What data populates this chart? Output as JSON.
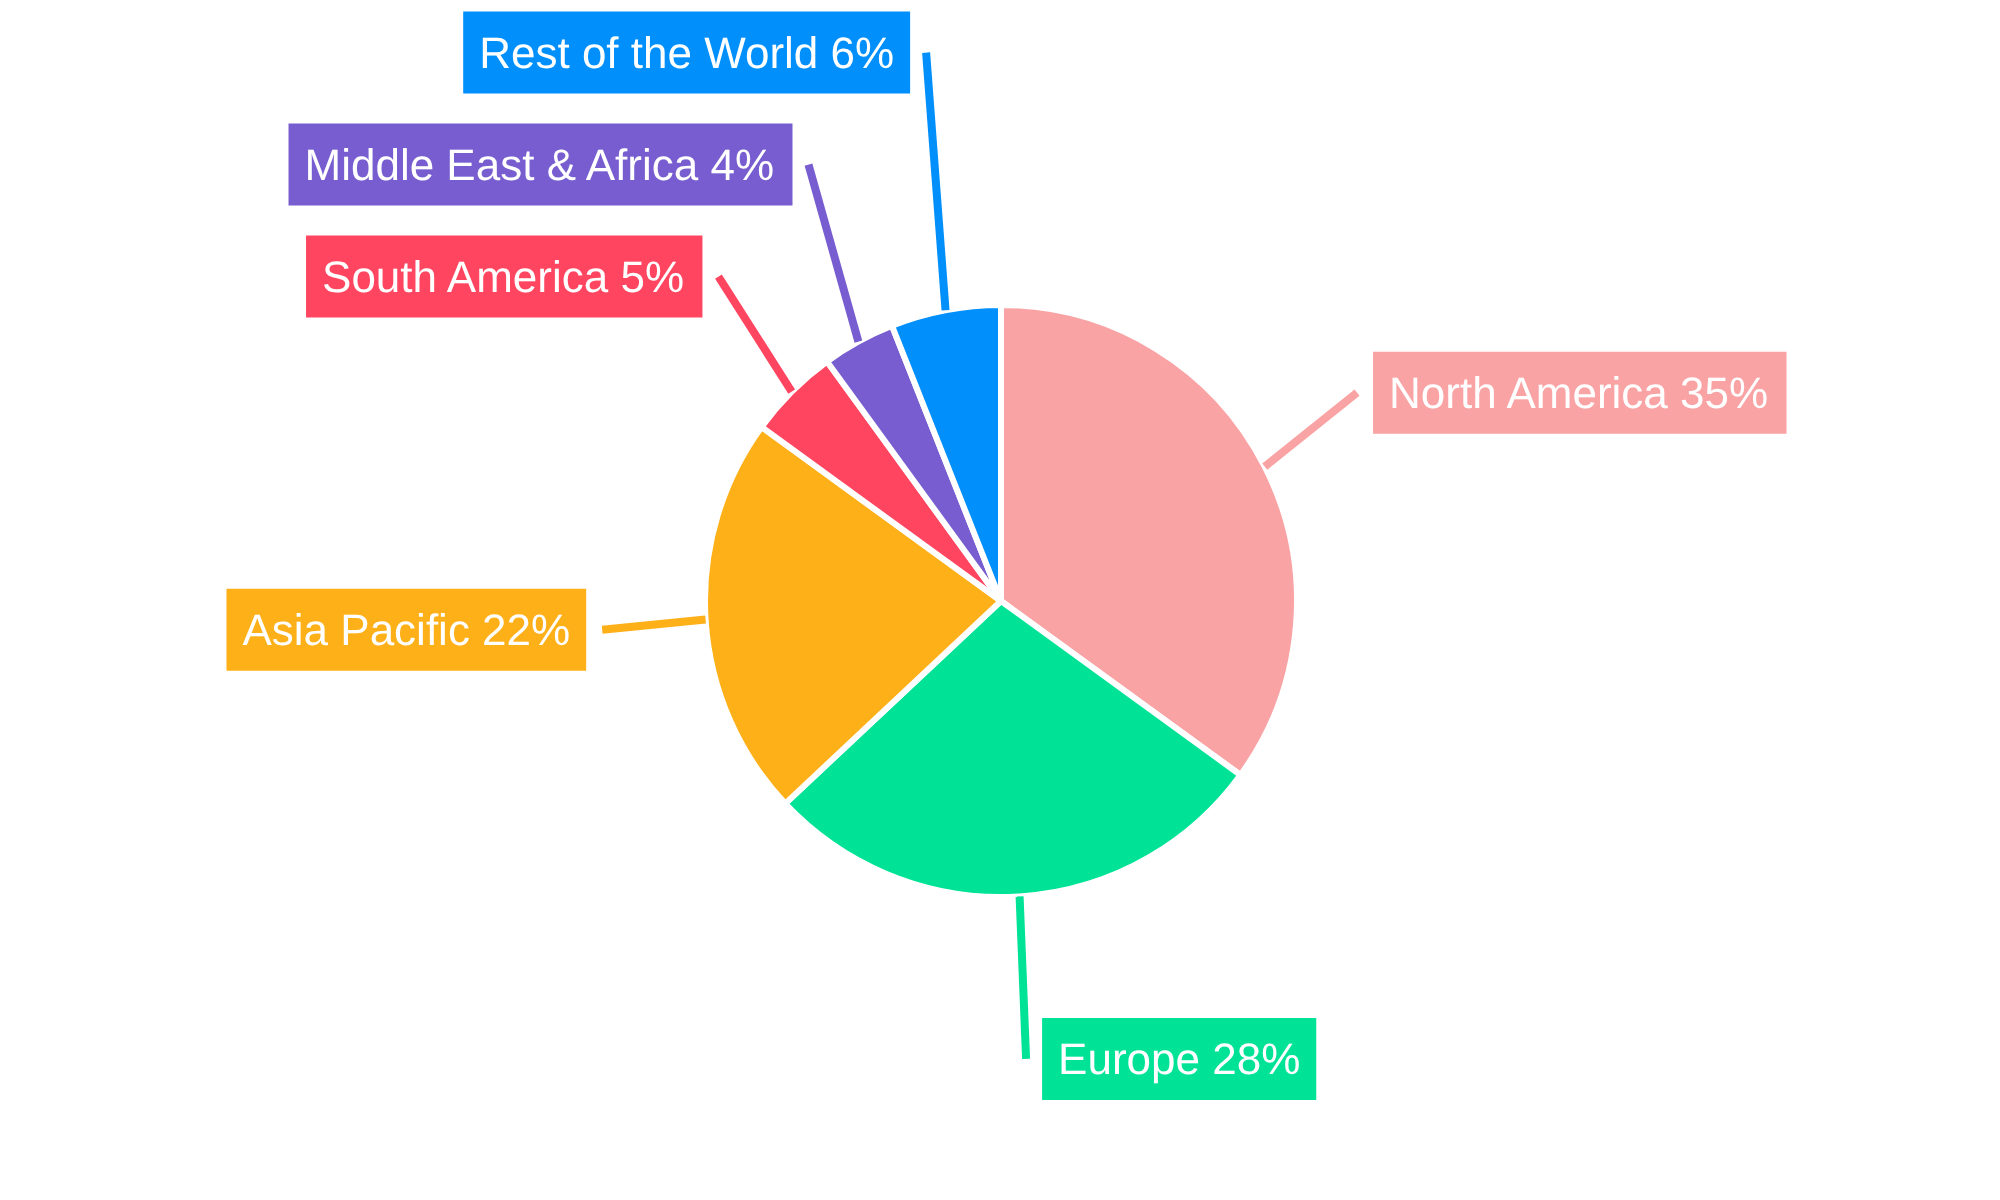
{
  "chart_data": {
    "type": "pie",
    "categories": [
      "North America",
      "Europe",
      "Asia Pacific",
      "South America",
      "Middle East & Africa",
      "Rest of the World"
    ],
    "values": [
      35,
      28,
      22,
      5,
      4,
      6
    ],
    "colors": [
      "#f9a3a4",
      "#00e396",
      "#feb019",
      "#ff4560",
      "#775dd0",
      "#008ffb"
    ],
    "value_labels": [
      "35%",
      "28%",
      "22%",
      "5%",
      "4%",
      "6%"
    ]
  }
}
